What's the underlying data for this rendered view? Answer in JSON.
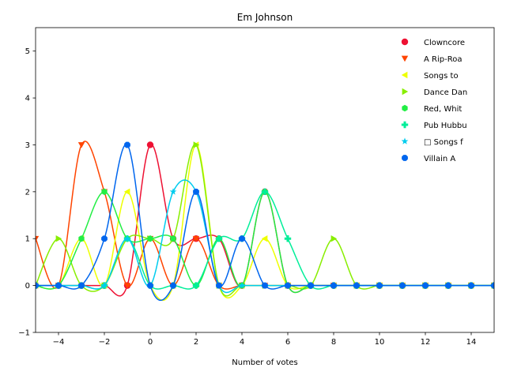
{
  "chart_data": {
    "type": "line",
    "title": "Em Johnson",
    "xlabel": "Number of votes",
    "ylabel": "",
    "xlim": [
      -5,
      15
    ],
    "ylim": [
      -1,
      5.5
    ],
    "xticks": [
      -4,
      -2,
      0,
      2,
      4,
      6,
      8,
      10,
      12,
      14
    ],
    "yticks": [
      -1,
      0,
      1,
      2,
      3,
      4,
      5
    ],
    "grid": false,
    "legend_position": "top-right",
    "x": [
      -5,
      -4,
      -3,
      -2,
      -1,
      0,
      1,
      2,
      3,
      4,
      5,
      6,
      7,
      8,
      9,
      10,
      11,
      12,
      13,
      14,
      15
    ],
    "series": [
      {
        "name": "Clowncore",
        "color": "#ee1133",
        "marker": "circle",
        "values": [
          0,
          0,
          0,
          0,
          0,
          3,
          1,
          1,
          1,
          0,
          2,
          0,
          0,
          0,
          0,
          0,
          0,
          0,
          0,
          0,
          0
        ]
      },
      {
        "name": "A Rip-Roa",
        "color": "#ff4400",
        "marker": "triangle-down",
        "values": [
          1,
          0,
          3,
          2,
          0,
          1,
          0,
          1,
          0,
          0,
          0,
          0,
          0,
          0,
          0,
          0,
          0,
          0,
          0,
          0,
          0
        ]
      },
      {
        "name": "Songs to",
        "color": "#eeff00",
        "marker": "triangle-left",
        "values": [
          0,
          0,
          1,
          0,
          2,
          0,
          0,
          3,
          0,
          0,
          1,
          0,
          0,
          0,
          0,
          0,
          0,
          0,
          0,
          0,
          0
        ]
      },
      {
        "name": "Dance Dan",
        "color": "#88ee00",
        "marker": "triangle-right",
        "values": [
          0,
          1,
          0,
          0,
          1,
          1,
          1,
          3,
          0,
          0,
          0,
          0,
          0,
          1,
          0,
          0,
          0,
          0,
          0,
          0,
          0
        ]
      },
      {
        "name": "Red, Whit",
        "color": "#22ee44",
        "marker": "hexagon",
        "values": [
          0,
          0,
          1,
          2,
          1,
          1,
          1,
          0,
          1,
          0,
          2,
          0,
          0,
          0,
          0,
          0,
          0,
          0,
          0,
          0,
          0
        ]
      },
      {
        "name": "Pub Hubbu",
        "color": "#00ee99",
        "marker": "plus",
        "values": [
          0,
          0,
          0,
          0,
          1,
          0,
          0,
          0,
          1,
          1,
          2,
          1,
          0,
          0,
          0,
          0,
          0,
          0,
          0,
          0,
          0
        ]
      },
      {
        "name": "□ Songs f",
        "color": "#00ccee",
        "marker": "star",
        "values": [
          0,
          0,
          0,
          0,
          1,
          0,
          2,
          2,
          0,
          0,
          0,
          0,
          0,
          0,
          0,
          0,
          0,
          0,
          0,
          0,
          0
        ]
      },
      {
        "name": "Villain A",
        "color": "#0066ee",
        "marker": "octagon",
        "values": [
          0,
          0,
          0,
          1,
          3,
          0,
          0,
          2,
          0,
          1,
          0,
          0,
          0,
          0,
          0,
          0,
          0,
          0,
          0,
          0,
          0
        ]
      }
    ]
  }
}
